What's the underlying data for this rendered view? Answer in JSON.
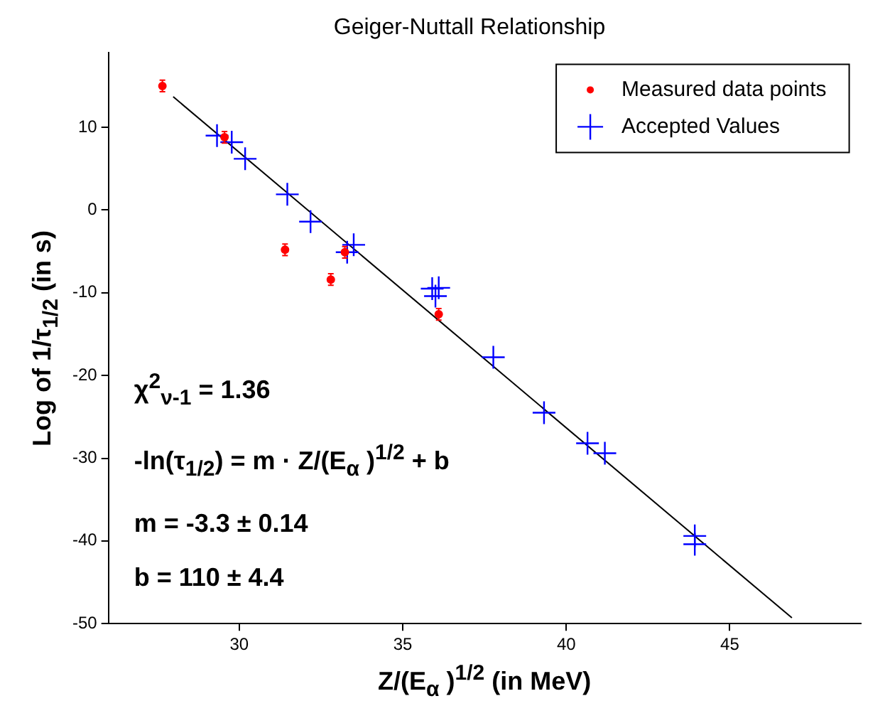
{
  "chart_data": {
    "type": "scatter",
    "title": "Geiger-Nuttall Relationship",
    "xlabel": "Z/(E$_{α}$ )$^{1/2}$  (in MeV)",
    "ylabel": "Log of 1/τ$_{1/2}$ (in s)",
    "xlim": [
      26,
      49
    ],
    "xticks": [
      30,
      35,
      40,
      45
    ],
    "ylim": [
      -50,
      19
    ],
    "yticks": [
      -50,
      -40,
      -30,
      -20,
      -10,
      0,
      10
    ],
    "grid": false,
    "legend": "top right",
    "annotations": [
      "χ$^{2}$$_{ν-1}$ = 1.36",
      "-ln(τ$_{1/2}$) = m · Z/(E$_{α}$ )$^{1/2}$ + b",
      "m = -3.3 ± 0.14",
      "b = 110 ± 4.4"
    ],
    "series": [
      {
        "name": "Measured data points",
        "color": "#ff0000",
        "marker": "circle",
        "x": [
          27.65,
          29.55,
          31.4,
          32.8,
          33.23,
          36.1
        ],
        "values": [
          15.0,
          8.8,
          -4.8,
          -8.4,
          -5.1,
          -12.6
        ],
        "errors": [
          0.7,
          0.7,
          0.7,
          0.7,
          0.7,
          0.7
        ]
      },
      {
        "name": "Accepted Values",
        "color": "#0000ff",
        "marker": "cross",
        "x": [
          29.32,
          29.77,
          30.18,
          31.47,
          32.18,
          33.5,
          33.3,
          35.9,
          36.1,
          36.0,
          37.77,
          39.32,
          40.65,
          41.18,
          43.93,
          43.93
        ],
        "values": [
          9.0,
          8.2,
          6.2,
          1.9,
          -1.4,
          -4.2,
          -5.1,
          -9.5,
          -9.4,
          -10.4,
          -17.8,
          -24.5,
          -28.2,
          -29.4,
          -39.4,
          -40.4
        ]
      },
      {
        "type": "line",
        "color": "#000000",
        "marker": "none",
        "x": [
          27.98,
          46.9
        ],
        "values": [
          13.7,
          -49.3
        ]
      }
    ]
  }
}
